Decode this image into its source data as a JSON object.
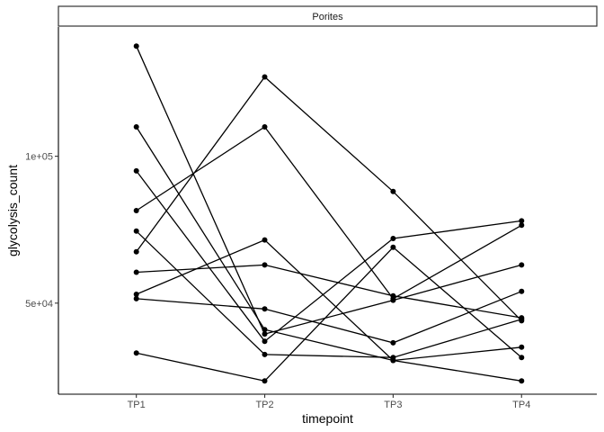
{
  "chart_data": {
    "type": "line",
    "facet_label": "Porites",
    "xlabel": "timepoint",
    "ylabel": "glycolysis_count",
    "categories": [
      "TP1",
      "TP2",
      "TP3",
      "TP4"
    ],
    "ylim": [
      19000,
      144000
    ],
    "y_ticks": [
      50000,
      100000
    ],
    "y_tick_labels": [
      "5e+04",
      "1e+05"
    ],
    "grid": false,
    "legend": "none",
    "series": [
      {
        "values": [
          137500,
          39500,
          51000,
          63000
        ]
      },
      {
        "values": [
          110000,
          41000,
          30500,
          35000
        ]
      },
      {
        "values": [
          95000,
          37000,
          72000,
          78000
        ]
      },
      {
        "values": [
          81500,
          110000,
          51500,
          76500
        ]
      },
      {
        "values": [
          74500,
          32500,
          31500,
          44500
        ]
      },
      {
        "values": [
          67500,
          127000,
          88000,
          44000
        ]
      },
      {
        "values": [
          60500,
          63000,
          52500,
          45000
        ]
      },
      {
        "values": [
          53000,
          71500,
          30500,
          23500
        ]
      },
      {
        "values": [
          51500,
          48000,
          36500,
          54000
        ]
      },
      {
        "values": [
          33000,
          23500,
          69000,
          31500
        ]
      }
    ],
    "colors": {
      "line": "#000000",
      "point": "#000000",
      "axis": "#000000"
    }
  }
}
